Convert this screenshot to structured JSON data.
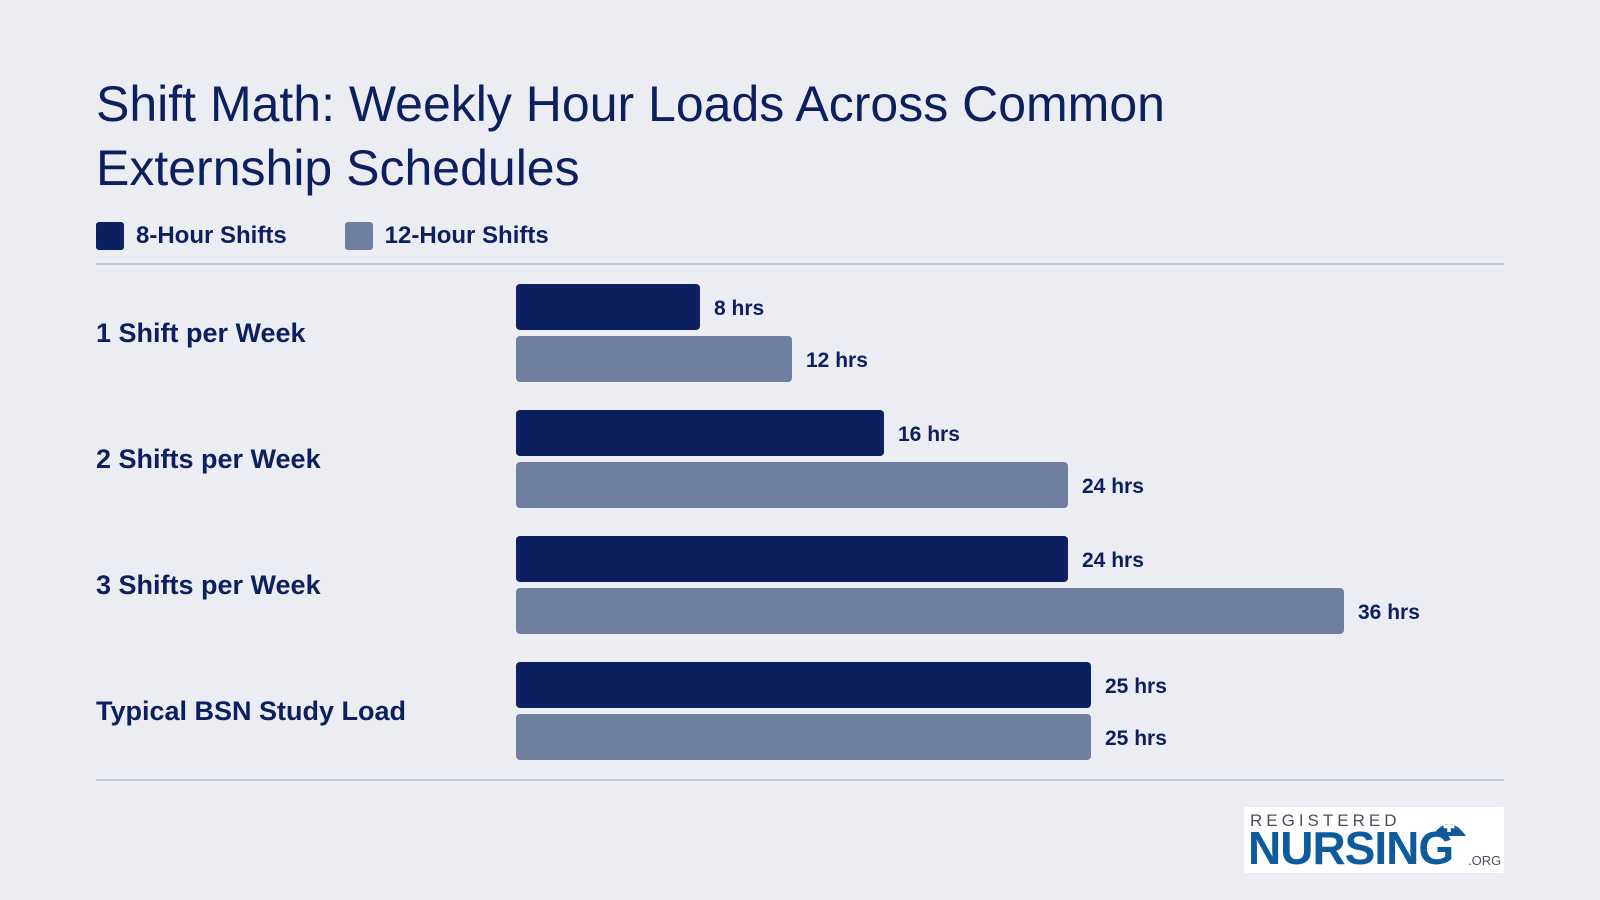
{
  "chart_data": {
    "type": "bar",
    "orientation": "horizontal",
    "title": "Shift Math: Weekly Hour Loads Across Common Externship Schedules",
    "categories": [
      "1 Shift per Week",
      "2 Shifts per Week",
      "3 Shifts per Week",
      "Typical BSN Study Load"
    ],
    "series": [
      {
        "name": "8-Hour Shifts",
        "values": [
          8,
          16,
          24,
          25
        ],
        "color": "#0c1f5e"
      },
      {
        "name": "12-Hour Shifts",
        "values": [
          12,
          24,
          36,
          25
        ],
        "color": "#707ea0"
      }
    ],
    "value_suffix": " hrs",
    "xlim": [
      0,
      36
    ],
    "legend_position": "top-left",
    "grid": false
  },
  "logo": {
    "top_text": "REGISTERED",
    "main_text": "NURSING",
    "suffix_text": ".ORG"
  }
}
